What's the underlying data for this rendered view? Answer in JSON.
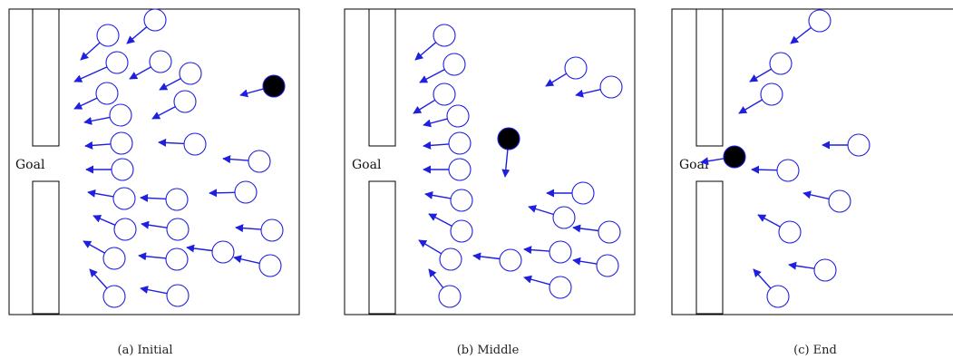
{
  "colors": {
    "agent": "#1f1fe0",
    "ball": "#000000",
    "frame": "#000000"
  },
  "panels": [
    {
      "caption": "(a) Initial",
      "goal_label": "Goal"
    },
    {
      "caption": "(b) Middle",
      "goal_label": "Goal"
    },
    {
      "caption": "(c) End",
      "goal_label": "Goal"
    }
  ]
}
